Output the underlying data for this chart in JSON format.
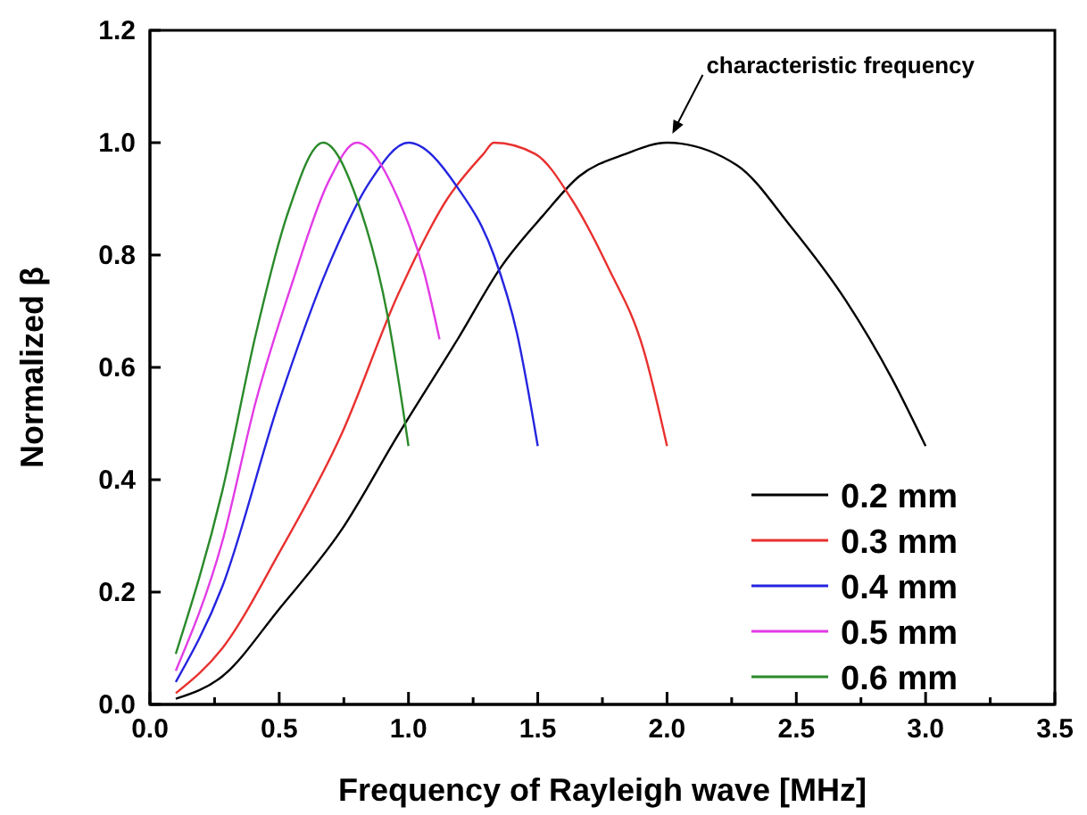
{
  "chart_data": {
    "type": "line",
    "xlabel": "Frequency of Rayleigh wave [MHz]",
    "ylabel": "Normalized β",
    "xlim": [
      0,
      3.5
    ],
    "ylim": [
      0,
      1.2
    ],
    "xticks": [
      {
        "value": 0,
        "label": "0.0"
      },
      {
        "value": 0.25,
        "label": null
      },
      {
        "value": 0.5,
        "label": "0.5"
      },
      {
        "value": 0.75,
        "label": null
      },
      {
        "value": 1,
        "label": "1.0"
      },
      {
        "value": 1.25,
        "label": null
      },
      {
        "value": 1.5,
        "label": "1.5"
      },
      {
        "value": 1.75,
        "label": null
      },
      {
        "value": 2,
        "label": "2.0"
      },
      {
        "value": 2.25,
        "label": null
      },
      {
        "value": 2.5,
        "label": "2.5"
      },
      {
        "value": 2.75,
        "label": null
      },
      {
        "value": 3,
        "label": "3.0"
      },
      {
        "value": 3.25,
        "label": null
      },
      {
        "value": 3.5,
        "label": "3.5"
      }
    ],
    "yticks": [
      {
        "value": 0,
        "label": "0.0"
      },
      {
        "value": 0.2,
        "label": "0.2"
      },
      {
        "value": 0.4,
        "label": "0.4"
      },
      {
        "value": 0.6,
        "label": "0.6"
      },
      {
        "value": 0.8,
        "label": "0.8"
      },
      {
        "value": 1,
        "label": "1.0"
      },
      {
        "value": 1.2,
        "label": "1.2"
      }
    ],
    "grid": false,
    "legend": "bottom right",
    "marker": "none",
    "line_style": "solid",
    "annotations": [
      {
        "text": "characteristic frequency",
        "x": 2.0,
        "y": 1.0
      }
    ],
    "series": [
      {
        "name": "0.2 mm",
        "color": "#000000",
        "x": [
          0.1,
          0.28,
          0.5,
          0.74,
          0.96,
          1.19,
          1.36,
          1.52,
          1.66,
          1.84,
          2.0,
          2.27,
          2.48,
          2.69,
          2.87,
          3.0
        ],
        "values": [
          0.01,
          0.05,
          0.17,
          0.31,
          0.48,
          0.65,
          0.78,
          0.87,
          0.94,
          0.98,
          1.0,
          0.96,
          0.85,
          0.72,
          0.58,
          0.46
        ]
      },
      {
        "name": "0.3 mm",
        "color": "#e8312f",
        "x": [
          0.1,
          0.28,
          0.5,
          0.74,
          0.96,
          1.15,
          1.29,
          1.33,
          1.49,
          1.63,
          1.77,
          1.91,
          2.0
        ],
        "values": [
          0.02,
          0.1,
          0.27,
          0.48,
          0.73,
          0.9,
          0.98,
          1.0,
          0.98,
          0.9,
          0.78,
          0.63,
          0.46
        ]
      },
      {
        "name": "0.4 mm",
        "color": "#2424e0",
        "x": [
          0.1,
          0.28,
          0.5,
          0.69,
          0.85,
          1.0,
          1.19,
          1.33,
          1.42,
          1.5
        ],
        "values": [
          0.04,
          0.21,
          0.54,
          0.78,
          0.93,
          1.0,
          0.92,
          0.8,
          0.66,
          0.46
        ]
      },
      {
        "name": "0.5 mm",
        "color": "#e23be6",
        "x": [
          0.1,
          0.28,
          0.41,
          0.55,
          0.69,
          0.8,
          0.96,
          1.06,
          1.12
        ],
        "values": [
          0.06,
          0.29,
          0.54,
          0.75,
          0.93,
          1.0,
          0.9,
          0.77,
          0.65
        ]
      },
      {
        "name": "0.6 mm",
        "color": "#2a8a2a",
        "x": [
          0.1,
          0.28,
          0.41,
          0.53,
          0.67,
          0.8,
          0.92,
          1.0
        ],
        "values": [
          0.09,
          0.38,
          0.66,
          0.87,
          1.0,
          0.9,
          0.69,
          0.46
        ]
      }
    ]
  }
}
